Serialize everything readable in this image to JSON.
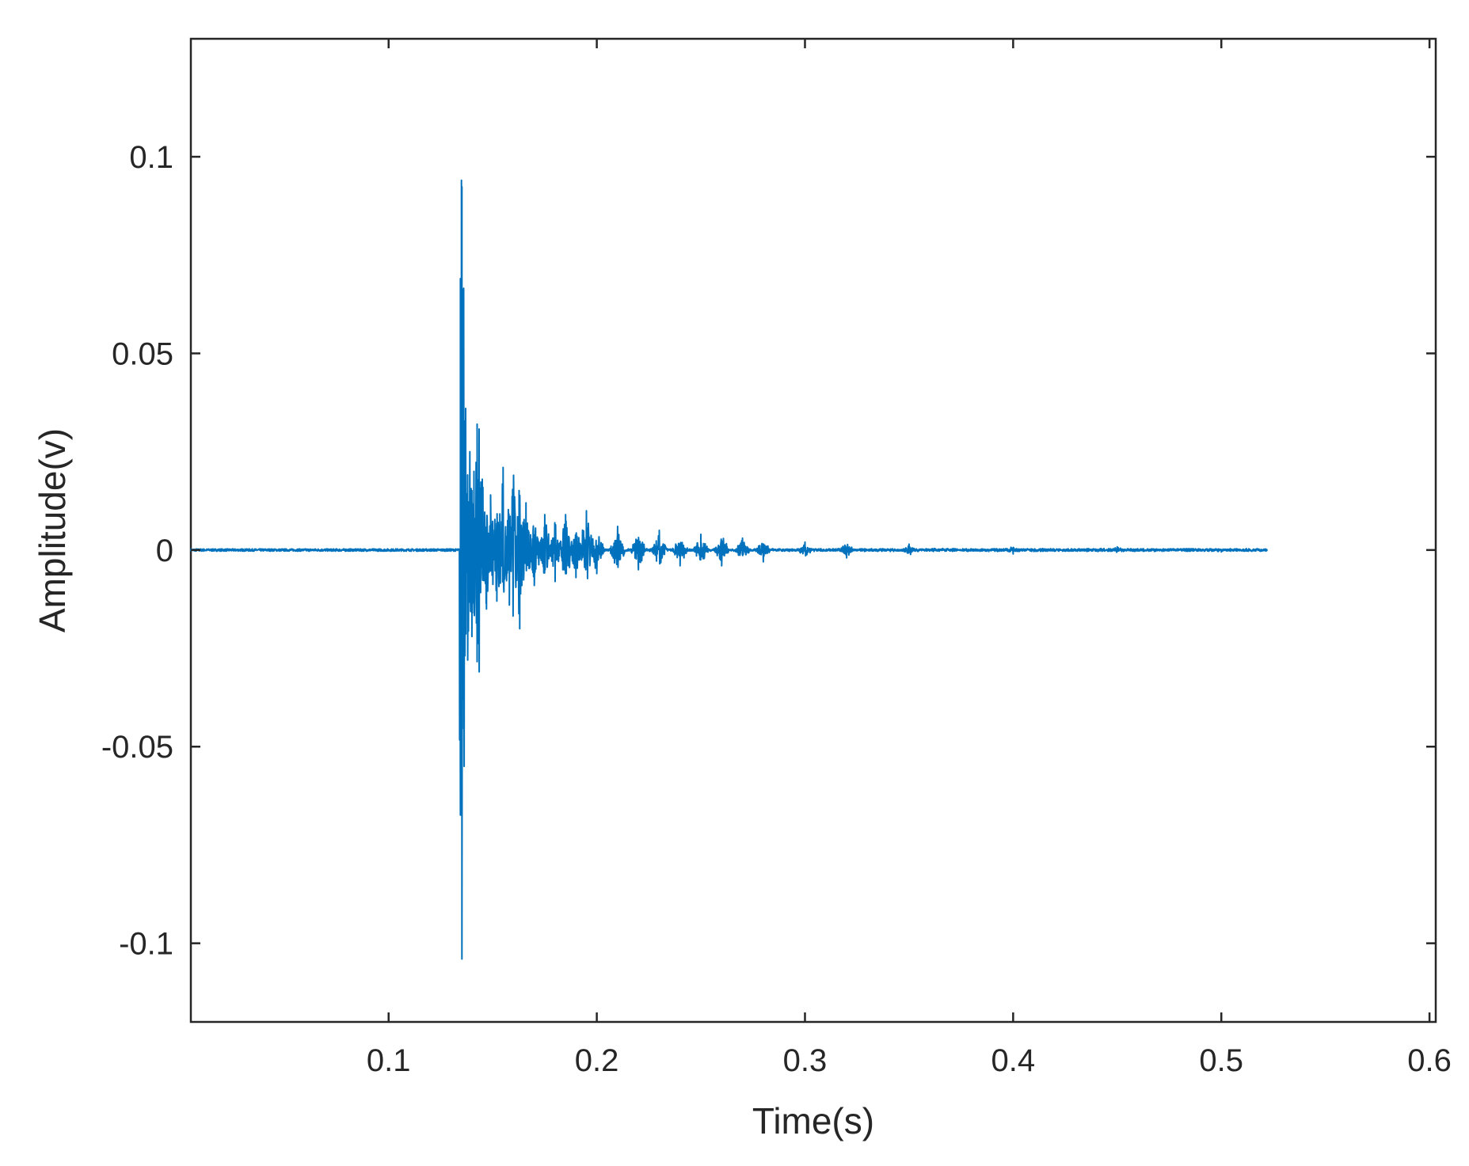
{
  "chart_data": {
    "type": "line",
    "title": "",
    "xlabel": "Time(s)",
    "ylabel": "Amplitude(v)",
    "xlim": [
      0.005,
      0.603
    ],
    "ylim": [
      -0.12,
      0.13
    ],
    "x_ticks": [
      0.1,
      0.2,
      0.3,
      0.4,
      0.5,
      0.6
    ],
    "x_tick_labels": [
      "0.1",
      "0.2",
      "0.3",
      "0.4",
      "0.5",
      "0.6"
    ],
    "y_ticks": [
      -0.1,
      -0.05,
      0,
      0.05,
      0.1
    ],
    "y_tick_labels": [
      "-0.1",
      "-0.05",
      "0",
      "0.05",
      "0.1"
    ],
    "grid": false,
    "box": true,
    "line_color": "#0072BD",
    "series": [
      {
        "signal_start": 0.005,
        "signal_end": 0.522,
        "baseline": 0,
        "impact_time": 0.134,
        "points": [
          [
            0.134,
            0.0
          ],
          [
            0.1345,
            0.069
          ],
          [
            0.135,
            0.094
          ],
          [
            0.1352,
            -0.104
          ],
          [
            0.1356,
            0.045
          ],
          [
            0.136,
            -0.038
          ],
          [
            0.137,
            0.036
          ],
          [
            0.138,
            -0.028
          ],
          [
            0.139,
            0.025
          ],
          [
            0.14,
            -0.022
          ],
          [
            0.141,
            0.02
          ],
          [
            0.1425,
            0.032
          ],
          [
            0.1435,
            -0.031
          ],
          [
            0.145,
            0.018
          ],
          [
            0.147,
            -0.015
          ],
          [
            0.149,
            0.014
          ],
          [
            0.152,
            -0.013
          ],
          [
            0.155,
            0.021
          ],
          [
            0.158,
            -0.014
          ],
          [
            0.16,
            0.019
          ],
          [
            0.163,
            -0.02
          ],
          [
            0.166,
            0.012
          ],
          [
            0.17,
            -0.009
          ],
          [
            0.175,
            0.009
          ],
          [
            0.18,
            -0.008
          ],
          [
            0.185,
            0.009
          ],
          [
            0.19,
            -0.007
          ],
          [
            0.195,
            0.01
          ],
          [
            0.2,
            -0.006
          ],
          [
            0.21,
            0.006
          ],
          [
            0.22,
            -0.005
          ],
          [
            0.23,
            0.005
          ],
          [
            0.24,
            -0.004
          ],
          [
            0.25,
            0.004
          ],
          [
            0.26,
            -0.004
          ],
          [
            0.27,
            0.003
          ],
          [
            0.28,
            -0.003
          ],
          [
            0.3,
            0.002
          ],
          [
            0.32,
            -0.002
          ],
          [
            0.35,
            0.0015
          ],
          [
            0.4,
            -0.001
          ],
          [
            0.45,
            0.0008
          ],
          [
            0.5,
            -0.0005
          ],
          [
            0.522,
            0.0
          ]
        ]
      }
    ]
  }
}
